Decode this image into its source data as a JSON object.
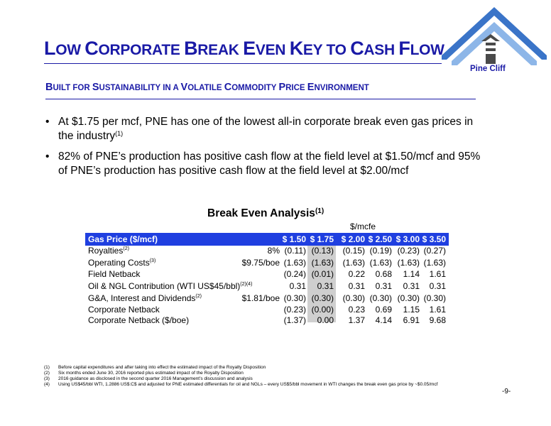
{
  "header": {
    "title_parts": [
      {
        "cap": "L",
        "rest": "OW "
      },
      {
        "cap": "C",
        "rest": "ORPORATE "
      },
      {
        "cap": "B",
        "rest": "REAK "
      },
      {
        "cap": "E",
        "rest": "VEN "
      },
      {
        "cap": "K",
        "rest": "EY TO "
      },
      {
        "cap": "C",
        "rest": "ASH "
      },
      {
        "cap": "F",
        "rest": "LOW"
      }
    ],
    "subtitle_parts": [
      {
        "cap": "B",
        "rest": "UILT FOR "
      },
      {
        "cap": "S",
        "rest": "USTAINABILITY IN A "
      },
      {
        "cap": "V",
        "rest": "OLATILE "
      },
      {
        "cap": "C",
        "rest": "OMMODITY "
      },
      {
        "cap": "P",
        "rest": "RICE "
      },
      {
        "cap": "E",
        "rest": "NVIRONMENT"
      }
    ],
    "logo_text": "Pine Cliff"
  },
  "bullets": [
    {
      "text": "At $1.75 per mcf, PNE has one of the lowest all-in corporate break even gas prices in the industry",
      "sup": "(1)"
    },
    {
      "text": "82% of PNE’s production has positive cash flow at the field level at $1.50/mcf and 95% of PNE’s production has positive cash flow at the field level at $2.00/mcf",
      "sup": ""
    }
  ],
  "table": {
    "title": "Break Even Analysis",
    "title_sup": "(1)",
    "unit": "$/mcfe",
    "header_label": "Gas Price ($/mcf)",
    "columns": [
      "$ 1.50",
      "$ 1.75",
      "$ 2.00",
      "$ 2.50",
      "$ 3.00",
      "$ 3.50"
    ],
    "rows": [
      {
        "label": "Royalties",
        "sup": "(2)",
        "note": "8%",
        "values": [
          "(0.11)",
          "(0.13)",
          "(0.15)",
          "(0.19)",
          "(0.23)",
          "(0.27)"
        ]
      },
      {
        "label": "Operating Costs",
        "sup": "(3)",
        "note": "$9.75/boe",
        "values": [
          "(1.63)",
          "(1.63)",
          "(1.63)",
          "(1.63)",
          "(1.63)",
          "(1.63)"
        ]
      },
      {
        "label": "Field Netback",
        "sup": "",
        "note": "",
        "values": [
          "(0.24)",
          "(0.01)",
          "0.22",
          "0.68",
          "1.14",
          "1.61"
        ]
      },
      {
        "label": "Oil & NGL Contribution (WTI US$45/bbl)",
        "sup": "(2)(4)",
        "note": "",
        "values": [
          "0.31",
          "0.31",
          "0.31",
          "0.31",
          "0.31",
          "0.31"
        ]
      },
      {
        "label": "G&A, Interest and Dividends",
        "sup": "(2)",
        "note": "$1.81/boe",
        "values": [
          "(0.30)",
          "(0.30)",
          "(0.30)",
          "(0.30)",
          "(0.30)",
          "(0.30)"
        ]
      },
      {
        "label": "Corporate Netback",
        "sup": "",
        "note": "",
        "values": [
          "(0.23)",
          "(0.00)",
          "0.23",
          "0.69",
          "1.15",
          "1.61"
        ]
      },
      {
        "label": "Corporate Netback ($/boe)",
        "sup": "",
        "note": "",
        "values": [
          "(1.37)",
          "0.00",
          "1.37",
          "4.14",
          "6.91",
          "9.68"
        ]
      }
    ]
  },
  "footnotes": [
    {
      "n": "(1)",
      "text": "Before capital expenditures and after taking into effect the estimated impact of the Royalty Disposition"
    },
    {
      "n": "(2)",
      "text": "Six months ended June 30, 2016 reported plus estimated impact of the Royalty Disposition"
    },
    {
      "n": "(3)",
      "text": "2016 guidance as disclosed in the second quarter 2016 Management’s discussion and analysis"
    },
    {
      "n": "(4)",
      "text": "Using US$45/bbl WTI, 1.2886 US$:C$ and adjusted for PNE estimated differentials for oil and NGLs – every US$5/bbl movement in WTI changes the break even gas price by ~$0.05/mcf"
    }
  ],
  "page_number": "-9-"
}
